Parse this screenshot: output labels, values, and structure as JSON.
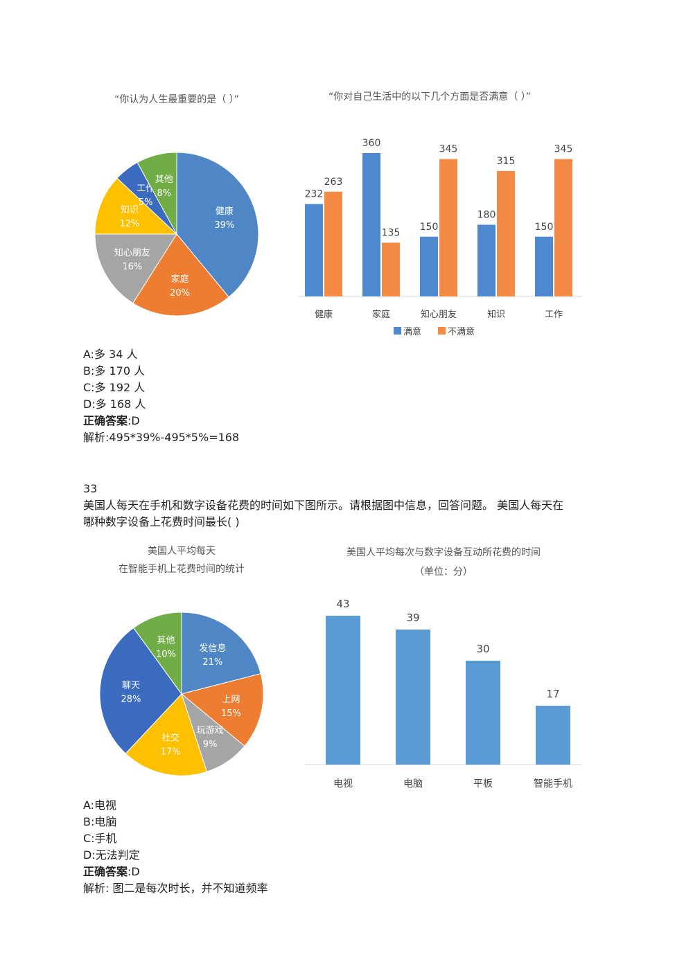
{
  "colors": {
    "blue": "#4f86c6",
    "orange": "#ed7d31",
    "gray": "#a5a5a5",
    "yellow": "#ffc000",
    "green": "#70ad47",
    "darkblue": "#3a6bbf",
    "bar_blue": "#4e89cf",
    "bar_orange": "#f38b46",
    "bar_single": "#5b9bd5"
  },
  "q32": {
    "pie": {
      "title": "“你认为人生最重要的是（   ）”",
      "chart_data": {
        "type": "pie",
        "slices": [
          {
            "label": "健康",
            "value": 39,
            "value_label": "39%",
            "color": "#4f86c6"
          },
          {
            "label": "家庭",
            "value": 20,
            "value_label": "20%",
            "color": "#ed7d31"
          },
          {
            "label": "知心朋友",
            "value": 16,
            "value_label": "16%",
            "color": "#a5a5a5"
          },
          {
            "label": "知识",
            "value": 12,
            "value_label": "12%",
            "color": "#ffc000"
          },
          {
            "label": "工作",
            "value": 5,
            "value_label": "5%",
            "color": "#3a6bbf"
          },
          {
            "label": "其他",
            "value": 8,
            "value_label": "8%",
            "color": "#70ad47"
          }
        ]
      }
    },
    "bar": {
      "title": "“你对自己生活中的以下几个方面是否满意（   ）”",
      "chart_data": {
        "type": "bar",
        "categories": [
          "健康",
          "家庭",
          "知心朋友",
          "知识",
          "工作"
        ],
        "series": [
          {
            "name": "满意",
            "values": [
              232,
              360,
              150,
              180,
              150
            ],
            "color": "#4e89cf"
          },
          {
            "name": "不满意",
            "values": [
              263,
              135,
              345,
              315,
              345
            ],
            "color": "#f38b46"
          }
        ],
        "ylim": [
          0,
          400
        ],
        "legend": "bottom"
      }
    },
    "options": [
      "A:多 34 人",
      "B:多 170 人",
      "C:多 192 人",
      "D:多 168 人"
    ],
    "answer_label": "正确答案",
    "answer_value": ":D",
    "explanation": "解析:495*39%-495*5%=168"
  },
  "q33": {
    "number": "33",
    "question_line1": "美国人每天在手机和数字设备花费的时间如下图所示。请根据图中信息，回答问题。 美国人每天在",
    "question_line2": "哪种数字设备上花费时间最长( )",
    "pie": {
      "title_line1": "美国人平均每天",
      "title_line2": "在智能手机上花费时间的统计",
      "chart_data": {
        "type": "pie",
        "slices": [
          {
            "label": "发信息",
            "value": 21,
            "value_label": "21%",
            "color": "#4f86c6"
          },
          {
            "label": "上网",
            "value": 15,
            "value_label": "15%",
            "color": "#ed7d31"
          },
          {
            "label": "玩游戏",
            "value": 9,
            "value_label": "9%",
            "color": "#a5a5a5"
          },
          {
            "label": "社交",
            "value": 17,
            "value_label": "17%",
            "color": "#ffc000"
          },
          {
            "label": "聊天",
            "value": 28,
            "value_label": "28%",
            "color": "#3a6bbf"
          },
          {
            "label": "其他",
            "value": 10,
            "value_label": "10%",
            "color": "#70ad47"
          }
        ]
      }
    },
    "bar": {
      "title_line1": "美国人平均每次与数字设备互动所花费的时间",
      "title_line2": "（单位：分）",
      "chart_data": {
        "type": "bar",
        "categories": [
          "电视",
          "电脑",
          "平板",
          "智能手机"
        ],
        "values": [
          43,
          39,
          30,
          17
        ],
        "color": "#5b9bd5",
        "ylim": [
          0,
          50
        ]
      }
    },
    "options": [
      "A:电视",
      "B:电脑",
      "C:手机",
      "D:无法判定"
    ],
    "answer_label": "正确答案",
    "answer_value": ":D",
    "explanation": "解析: 图二是每次时长，并不知道频率"
  }
}
